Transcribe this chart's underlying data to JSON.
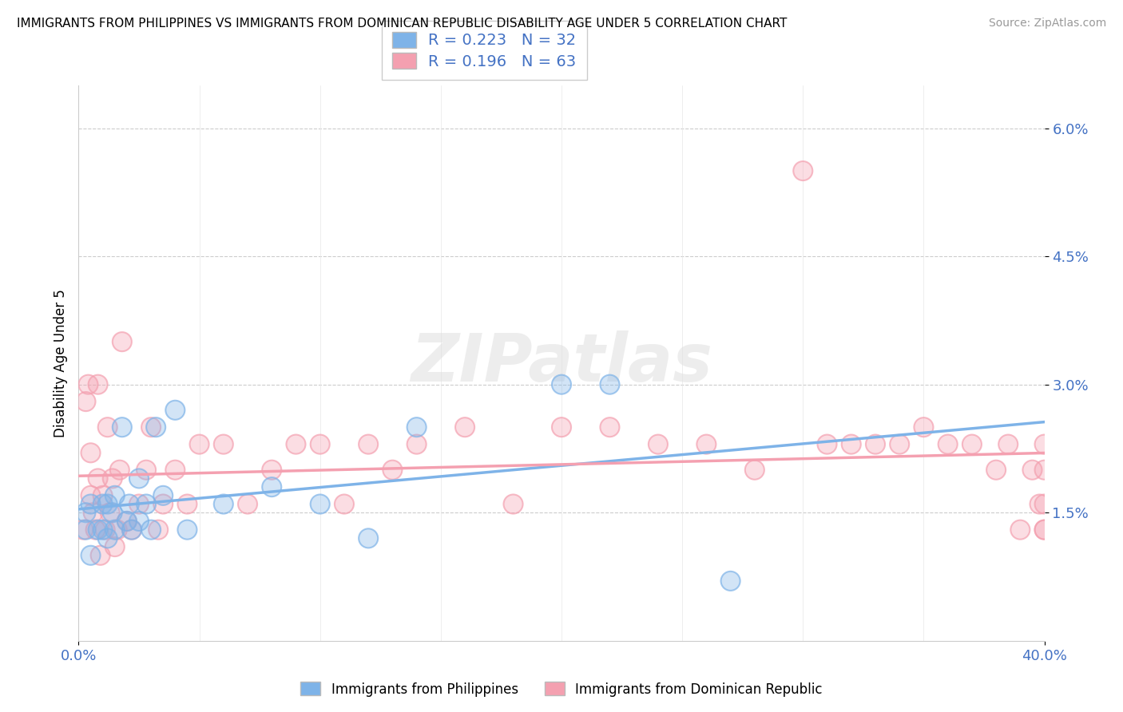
{
  "title": "IMMIGRANTS FROM PHILIPPINES VS IMMIGRANTS FROM DOMINICAN REPUBLIC DISABILITY AGE UNDER 5 CORRELATION CHART",
  "source": "Source: ZipAtlas.com",
  "ylabel": "Disability Age Under 5",
  "xlim": [
    0.0,
    0.4
  ],
  "ylim": [
    0.0,
    0.065
  ],
  "ytick_labels": [
    "1.5%",
    "3.0%",
    "4.5%",
    "6.0%"
  ],
  "ytick_vals": [
    0.015,
    0.03,
    0.045,
    0.06
  ],
  "legend1_R": "0.223",
  "legend1_N": "32",
  "legend2_R": "0.196",
  "legend2_N": "63",
  "color_philippines": "#7EB3E8",
  "color_dominican": "#F4A0B0",
  "philippines_x": [
    0.003,
    0.003,
    0.005,
    0.005,
    0.008,
    0.01,
    0.01,
    0.012,
    0.012,
    0.014,
    0.015,
    0.015,
    0.018,
    0.02,
    0.021,
    0.022,
    0.025,
    0.025,
    0.028,
    0.03,
    0.032,
    0.035,
    0.04,
    0.045,
    0.06,
    0.08,
    0.1,
    0.12,
    0.14,
    0.2,
    0.22,
    0.27
  ],
  "philippines_y": [
    0.013,
    0.015,
    0.01,
    0.016,
    0.013,
    0.013,
    0.016,
    0.012,
    0.016,
    0.015,
    0.013,
    0.017,
    0.025,
    0.014,
    0.016,
    0.013,
    0.014,
    0.019,
    0.016,
    0.013,
    0.025,
    0.017,
    0.027,
    0.013,
    0.016,
    0.018,
    0.016,
    0.012,
    0.025,
    0.03,
    0.03,
    0.007
  ],
  "dominican_x": [
    0.002,
    0.003,
    0.004,
    0.005,
    0.005,
    0.006,
    0.007,
    0.008,
    0.008,
    0.009,
    0.01,
    0.011,
    0.012,
    0.013,
    0.014,
    0.015,
    0.016,
    0.017,
    0.018,
    0.02,
    0.022,
    0.025,
    0.028,
    0.03,
    0.033,
    0.035,
    0.04,
    0.045,
    0.05,
    0.06,
    0.07,
    0.08,
    0.09,
    0.1,
    0.11,
    0.12,
    0.13,
    0.14,
    0.16,
    0.18,
    0.2,
    0.22,
    0.24,
    0.26,
    0.28,
    0.3,
    0.31,
    0.32,
    0.33,
    0.34,
    0.35,
    0.36,
    0.37,
    0.38,
    0.385,
    0.39,
    0.395,
    0.398,
    0.4,
    0.4,
    0.4,
    0.4,
    0.4
  ],
  "dominican_y": [
    0.013,
    0.028,
    0.03,
    0.017,
    0.022,
    0.015,
    0.013,
    0.019,
    0.03,
    0.01,
    0.017,
    0.013,
    0.025,
    0.015,
    0.019,
    0.011,
    0.013,
    0.02,
    0.035,
    0.014,
    0.013,
    0.016,
    0.02,
    0.025,
    0.013,
    0.016,
    0.02,
    0.016,
    0.023,
    0.023,
    0.016,
    0.02,
    0.023,
    0.023,
    0.016,
    0.023,
    0.02,
    0.023,
    0.025,
    0.016,
    0.025,
    0.025,
    0.023,
    0.023,
    0.02,
    0.055,
    0.023,
    0.023,
    0.023,
    0.023,
    0.025,
    0.023,
    0.023,
    0.02,
    0.023,
    0.013,
    0.02,
    0.016,
    0.023,
    0.013,
    0.02,
    0.016,
    0.013
  ]
}
